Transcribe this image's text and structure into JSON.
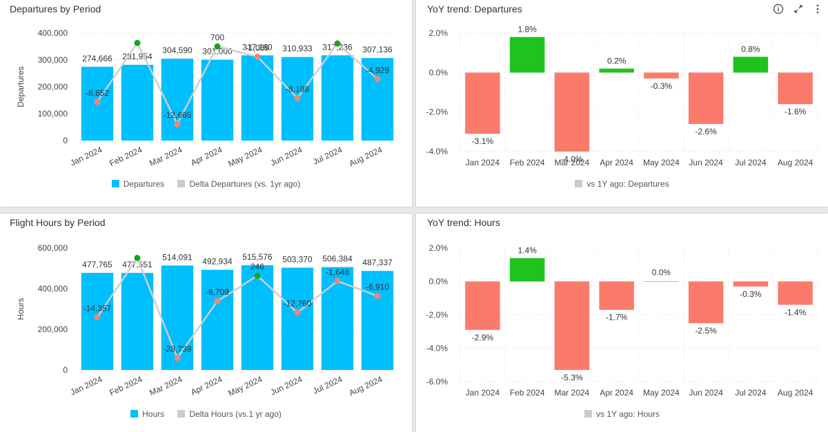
{
  "colors": {
    "bar": "#00bfff",
    "delta_line": "#cfcfcf",
    "delta_positive": "#1aa51a",
    "delta_negative": "#f48478",
    "yoy_positive": "#1ec31e",
    "yoy_negative": "#fa7b6c",
    "legend_delta": "#cccccc"
  },
  "panels": [
    {
      "title": "Departures by Period",
      "legend": [
        "Departures",
        "Delta Departures (vs. 1yr ago)"
      ],
      "chart_data": {
        "type": "bar",
        "categories": [
          "Jan 2024",
          "Feb 2024",
          "Mar 2024",
          "Apr 2024",
          "May 2024",
          "Jun 2024",
          "Jul 2024",
          "Aug 2024"
        ],
        "series": [
          {
            "name": "Departures",
            "type": "bar",
            "values": [
              274666,
              281954,
              304590,
              301000,
              317160,
              310933,
              317236,
              307136
            ],
            "labels": [
              "274,666",
              "281,954",
              "304,590",
              "301,000",
              "317,160",
              "310,933",
              "317,236",
              "307,136"
            ]
          },
          {
            "name": "Delta Departures (vs. 1yr ago)",
            "type": "line",
            "values": [
              -8852,
              1300,
              -12665,
              700,
              -1069,
              -8198,
              1200,
              -4929
            ],
            "labels": [
              "-8,852",
              "",
              "-12,665",
              "700",
              "-1,069",
              "-8,198",
              "",
              "-4,929"
            ]
          }
        ],
        "ylabel": "Departures",
        "ylim": [
          0,
          400000
        ],
        "yticks": [
          0,
          100000,
          200000,
          300000,
          400000
        ],
        "ytick_labels": [
          "0",
          "100,000",
          "200,000",
          "300,000",
          "400,000"
        ],
        "grid": true,
        "legend_position": "bottom"
      }
    },
    {
      "title": "YoY trend: Departures",
      "legend": [
        "vs 1Y ago: Departures"
      ],
      "chart_data": {
        "type": "bar",
        "categories": [
          "Jan 2024",
          "Feb 2024",
          "Mar 2024",
          "Apr 2024",
          "May 2024",
          "Jun 2024",
          "Jul 2024",
          "Aug 2024"
        ],
        "series": [
          {
            "name": "vs 1Y ago: Departures",
            "values": [
              -3.1,
              1.8,
              -4.0,
              0.2,
              -0.3,
              -2.6,
              0.8,
              -1.6
            ],
            "labels": [
              "-3.1%",
              "1.8%",
              "-4.0%",
              "0.2%",
              "-0.3%",
              "-2.6%",
              "0.8%",
              "-1.6%"
            ]
          }
        ],
        "ylim": [
          -4.0,
          2.0
        ],
        "yticks": [
          -4,
          -2,
          0,
          2
        ],
        "ytick_labels": [
          "-4.0%",
          "-2.0%",
          "0.0%",
          "2.0%"
        ],
        "grid": true,
        "legend_position": "bottom"
      }
    },
    {
      "title": "Flight Hours by Period",
      "legend": [
        "Hours",
        "Delta Hours (vs.1 yr ago)"
      ],
      "chart_data": {
        "type": "bar",
        "categories": [
          "Jan 2024",
          "Feb 2024",
          "Mar 2024",
          "Apr 2024",
          "May 2024",
          "Jun 2024",
          "Jul 2024",
          "Aug 2024"
        ],
        "series": [
          {
            "name": "Hours",
            "type": "bar",
            "values": [
              477765,
              477551,
              514091,
              492934,
              515576,
              503370,
              506384,
              487337
            ],
            "labels": [
              "477,765",
              "477,551",
              "514,091",
              "492,934",
              "515,576",
              "503,370",
              "506,384",
              "487,337"
            ]
          },
          {
            "name": "Delta Hours (vs.1 yr ago)",
            "type": "line",
            "values": [
              -14357,
              6500,
              -28739,
              -8709,
              246,
              -12760,
              -1648,
              -6910
            ],
            "labels": [
              "-14,357",
              "",
              "-28,739",
              "-8,709",
              "246",
              "-12,760",
              "-1,648",
              "-6,910"
            ]
          }
        ],
        "ylabel": "Hours",
        "ylim": [
          0,
          600000
        ],
        "yticks": [
          0,
          200000,
          400000,
          600000
        ],
        "ytick_labels": [
          "0",
          "200,000",
          "400,000",
          "600,000"
        ],
        "grid": true,
        "legend_position": "bottom"
      }
    },
    {
      "title": "YoY trend: Hours",
      "legend": [
        "vs 1Y ago: Hours"
      ],
      "chart_data": {
        "type": "bar",
        "categories": [
          "Jan 2024",
          "Feb 2024",
          "Mar 2024",
          "Apr 2024",
          "May 2024",
          "Jun 2024",
          "Jul 2024",
          "Aug 2024"
        ],
        "series": [
          {
            "name": "vs 1Y ago: Hours",
            "values": [
              -2.9,
              1.4,
              -5.3,
              -1.7,
              0.0,
              -2.5,
              -0.3,
              -1.4
            ],
            "labels": [
              "-2.9%",
              "1.4%",
              "-5.3%",
              "-1.7%",
              "0.0%",
              "-2.5%",
              "-0.3%",
              "-1.4%"
            ]
          }
        ],
        "ylim": [
          -6.0,
          2.0
        ],
        "yticks": [
          -6,
          -4,
          -2,
          0,
          2
        ],
        "ytick_labels": [
          "-6.0%",
          "-4.0%",
          "-2.0%",
          "0.0%",
          "2.0%"
        ],
        "grid": true,
        "legend_position": "bottom"
      }
    }
  ],
  "toolbar": {
    "icons": [
      "info-icon",
      "expand-icon",
      "more-vertical-icon"
    ]
  }
}
